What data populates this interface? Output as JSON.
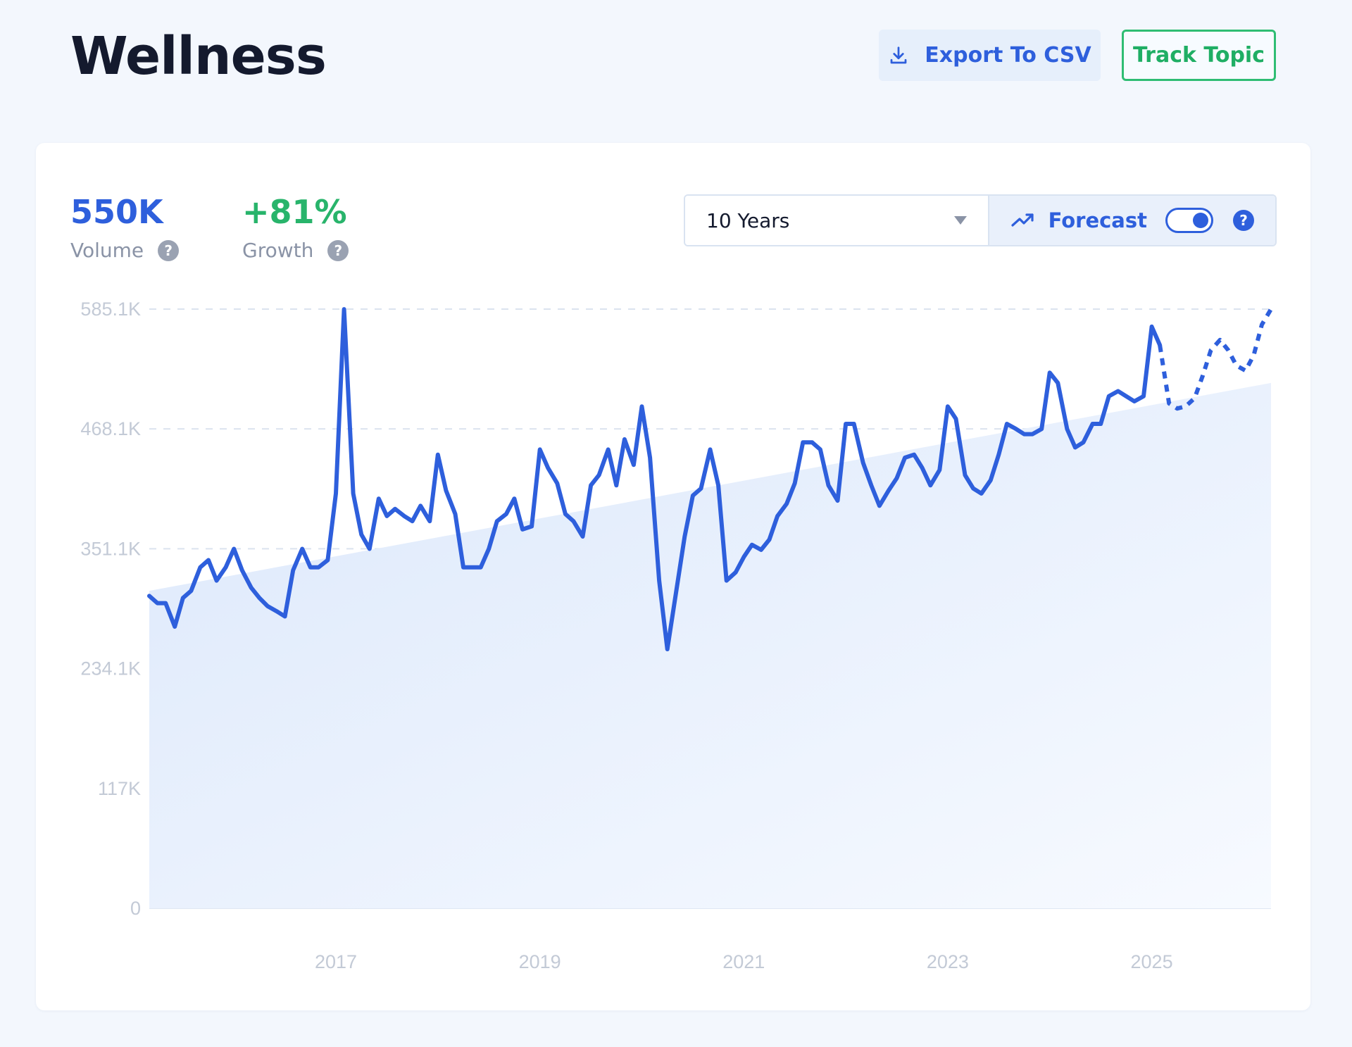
{
  "header": {
    "title": "Wellness",
    "export_label": "Export To CSV",
    "track_label": "Track Topic"
  },
  "stats": {
    "volume_value": "550K",
    "volume_label": "Volume",
    "growth_value": "+81%",
    "growth_label": "Growth"
  },
  "controls": {
    "range_value": "10 Years",
    "forecast_label": "Forecast",
    "forecast_enabled": true
  },
  "icons": {
    "export": "download-icon",
    "forecast": "trending-up-icon",
    "help": "question-icon"
  },
  "colors": {
    "accent": "#2e5fdc",
    "growth": "#28b46b",
    "track": "#2fbd73"
  },
  "chart_data": {
    "type": "line",
    "y_tick_labels": [
      "0",
      "117K",
      "234.1K",
      "351.1K",
      "468.1K",
      "585.1K"
    ],
    "y_tick_values": [
      0,
      117000,
      234100,
      351100,
      468100,
      585100
    ],
    "ylim": [
      0,
      585100
    ],
    "x_tick_labels": [
      "2017",
      "2019",
      "2021",
      "2023",
      "2025"
    ],
    "x_tick_values": [
      2017,
      2019,
      2021,
      2023,
      2025
    ],
    "xlim": [
      2015.17,
      2026.17
    ],
    "grid": true,
    "trend_line": {
      "x": [
        2015.17,
        2026.17
      ],
      "y": [
        310000,
        513000
      ]
    },
    "series": [
      {
        "values_x": [
          2015.17,
          2015.25,
          2015.33,
          2015.42,
          2015.5,
          2015.58,
          2015.67,
          2015.75,
          2015.83,
          2015.92,
          2016.0,
          2016.08,
          2016.17,
          2016.25,
          2016.33,
          2016.42,
          2016.5,
          2016.58,
          2016.67,
          2016.75,
          2016.83,
          2016.92,
          2017.0,
          2017.08,
          2017.17,
          2017.25,
          2017.33,
          2017.42,
          2017.5,
          2017.58,
          2017.67,
          2017.75,
          2017.83,
          2017.92,
          2018.0,
          2018.08,
          2018.17,
          2018.25,
          2018.33,
          2018.42,
          2018.5,
          2018.58,
          2018.67,
          2018.75,
          2018.83,
          2018.92,
          2019.0,
          2019.08,
          2019.17,
          2019.25,
          2019.33,
          2019.42,
          2019.5,
          2019.58,
          2019.67,
          2019.75,
          2019.83,
          2019.92,
          2020.0,
          2020.08,
          2020.17,
          2020.25,
          2020.33,
          2020.42,
          2020.5,
          2020.58,
          2020.67,
          2020.75,
          2020.83,
          2020.92,
          2021.0,
          2021.08,
          2021.17,
          2021.25,
          2021.33,
          2021.42,
          2021.5,
          2021.58,
          2021.67,
          2021.75,
          2021.83,
          2021.92,
          2022.0,
          2022.08,
          2022.17,
          2022.25,
          2022.33,
          2022.42,
          2022.5,
          2022.58,
          2022.67,
          2022.75,
          2022.83,
          2022.92,
          2023.0,
          2023.08,
          2023.17,
          2023.25,
          2023.33,
          2023.42,
          2023.5,
          2023.58,
          2023.67,
          2023.75,
          2023.83,
          2023.92,
          2024.0,
          2024.08,
          2024.17,
          2024.25,
          2024.33,
          2024.42,
          2024.5,
          2024.58,
          2024.67,
          2024.75,
          2024.83,
          2024.92,
          2025.0,
          2025.08
        ],
        "values": [
          305000,
          298000,
          298000,
          275000,
          303000,
          310000,
          333000,
          340000,
          320000,
          333000,
          351000,
          330000,
          313000,
          303000,
          295000,
          290000,
          285000,
          330000,
          351000,
          333000,
          333000,
          340000,
          405000,
          585000,
          405000,
          365000,
          351000,
          400000,
          383000,
          390000,
          383000,
          378000,
          393000,
          378000,
          443000,
          408000,
          385000,
          333000,
          333000,
          333000,
          351000,
          378000,
          385000,
          400000,
          370000,
          373000,
          448000,
          430000,
          415000,
          385000,
          378000,
          363000,
          413000,
          423000,
          448000,
          413000,
          458000,
          433000,
          490000,
          440000,
          320000,
          253000,
          305000,
          363000,
          403000,
          410000,
          448000,
          413000,
          320000,
          328000,
          343000,
          355000,
          350000,
          360000,
          383000,
          395000,
          415000,
          455000,
          455000,
          448000,
          413000,
          398000,
          473000,
          473000,
          435000,
          413000,
          393000,
          408000,
          420000,
          440000,
          443000,
          430000,
          413000,
          428000,
          490000,
          478000,
          423000,
          410000,
          405000,
          418000,
          443000,
          473000,
          468000,
          463000,
          463000,
          468000,
          523000,
          513000,
          468000,
          450000,
          455000,
          473000,
          473000,
          500000,
          505000,
          500000,
          495000,
          500000,
          568000,
          550000
        ]
      },
      {
        "style": "dashed",
        "values_x": [
          2025.08,
          2025.17,
          2025.25,
          2025.33,
          2025.42,
          2025.5,
          2025.58,
          2025.67,
          2025.75,
          2025.83,
          2025.92,
          2026.0,
          2026.08,
          2026.17
        ],
        "values": [
          550000,
          493000,
          488000,
          490000,
          498000,
          520000,
          545000,
          555000,
          545000,
          530000,
          525000,
          540000,
          570000,
          585000
        ]
      }
    ]
  }
}
